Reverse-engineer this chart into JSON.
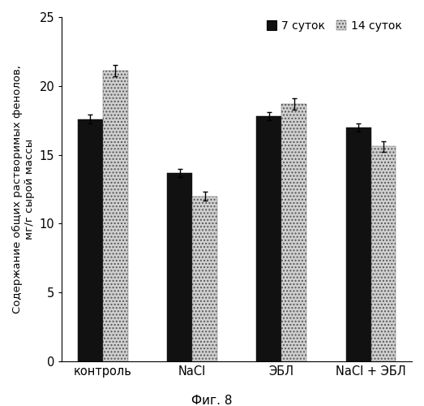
{
  "categories": [
    "контроль",
    "NaCl",
    "ЭБЛ",
    "NaCl + ЭБЛ"
  ],
  "series_7": [
    17.6,
    13.7,
    17.8,
    17.0
  ],
  "series_14": [
    21.1,
    12.0,
    18.7,
    15.6
  ],
  "errors_7": [
    0.3,
    0.3,
    0.3,
    0.3
  ],
  "errors_14": [
    0.4,
    0.3,
    0.4,
    0.4
  ],
  "color_7": "#111111",
  "color_14": "#d0d0d0",
  "ylabel": "Содержание общих растворимых фенолов,\nмг/г сырой массы",
  "caption": "Фиг. 8",
  "legend_7": "7 суток",
  "legend_14": "14 суток",
  "ylim": [
    0,
    25
  ],
  "yticks": [
    0,
    5,
    10,
    15,
    20,
    25
  ],
  "bar_width": 0.28,
  "group_positions": [
    0.0,
    1.0,
    2.0,
    3.0
  ]
}
